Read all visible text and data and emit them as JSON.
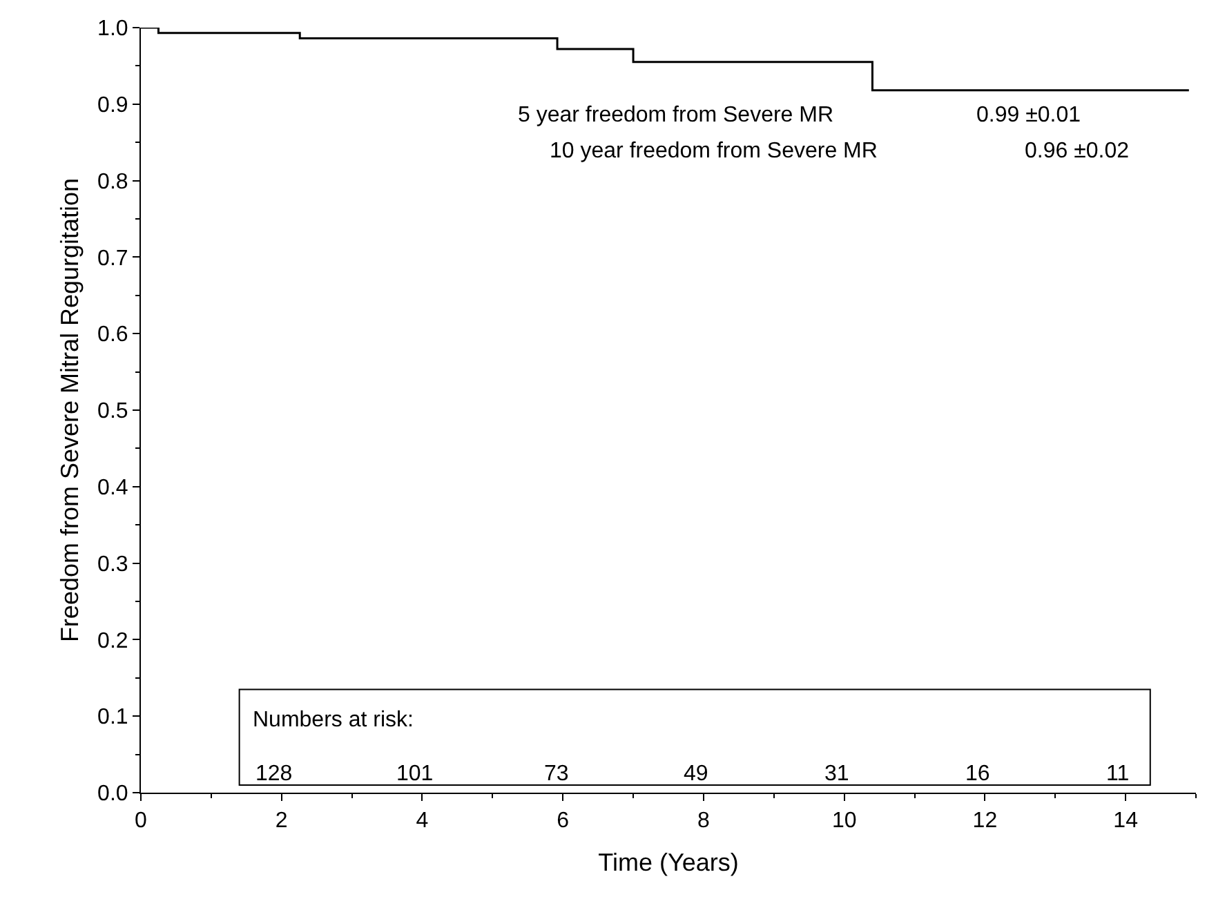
{
  "chart_data": {
    "type": "step",
    "xlabel": "Time (Years)",
    "ylabel": "Freedom from Severe Mitral Regurgitation",
    "x": [
      0,
      0.25,
      2.26,
      5.92,
      7.0,
      10.4,
      14.9
    ],
    "series": [
      {
        "color": "#000000",
        "values": [
          1.0,
          0.993,
          0.986,
          0.972,
          0.955,
          0.918,
          0.918
        ]
      }
    ],
    "xlim": [
      0,
      15
    ],
    "xticks": [
      0,
      2,
      4,
      6,
      8,
      10,
      12,
      14
    ],
    "ylim": [
      0,
      1
    ],
    "yticks": [
      {
        "value": 0,
        "label": "0.0"
      },
      0.1,
      0.2,
      0.3,
      0.4,
      0.5,
      0.6,
      0.7,
      0.8,
      0.9,
      {
        "value": 1,
        "label": "1.0"
      }
    ],
    "marker": "none",
    "line_style": "solid",
    "annotations": [
      "5 year freedom from Severe MR",
      "0.99 ±0.01",
      "10 year freedom from Severe MR",
      "0.96 ±0.02",
      "Numbers at risk:",
      "128",
      "101",
      "73",
      "49",
      "31",
      "16",
      "11"
    ]
  }
}
